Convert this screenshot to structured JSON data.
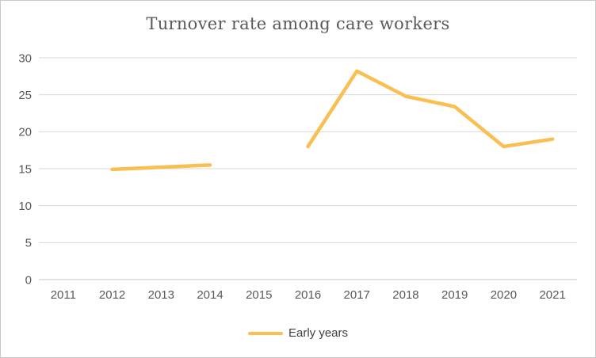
{
  "chart_data": {
    "type": "line",
    "title": "Turnover rate among care workers",
    "categories": [
      "2011",
      "2012",
      "2013",
      "2014",
      "2015",
      "2016",
      "2017",
      "2018",
      "2019",
      "2020",
      "2021"
    ],
    "series": [
      {
        "name": "Early years",
        "color": "#FABF52",
        "values": [
          null,
          14.9,
          15.2,
          15.5,
          null,
          18,
          28.2,
          24.8,
          23.4,
          18,
          19
        ]
      }
    ],
    "xlabel": "",
    "ylabel": "",
    "ylim": [
      0,
      30
    ],
    "yticks": [
      0,
      5,
      10,
      15,
      20,
      25,
      30
    ],
    "grid": true,
    "legend_position": "bottom",
    "markers": false
  },
  "colors": {
    "title": "#595959",
    "tick_label": "#595959",
    "legend_label": "#404040",
    "grid": "#d9d9d9",
    "axis": "#c6c6c6",
    "border": "#c9c9c9",
    "background": "#ffffff"
  }
}
